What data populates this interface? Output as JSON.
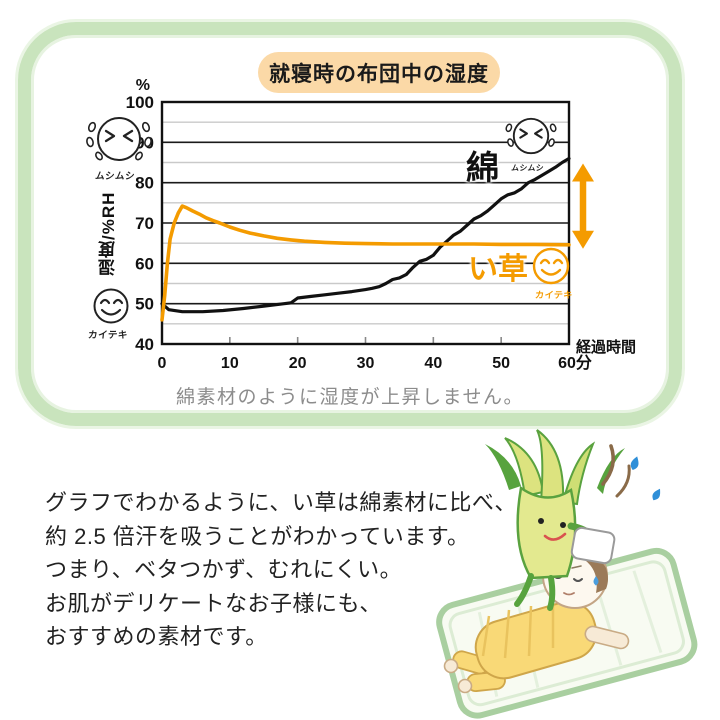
{
  "header": {
    "title": "就寝時の布団中の湿度",
    "pill_bg": "#fbd9a7"
  },
  "chart_data": {
    "type": "line",
    "title": "就寝時の布団中の湿度",
    "ylabel": "湿度/%RH",
    "y_unit_label": "%",
    "xlabel": "経過時間",
    "xlim": [
      0,
      60
    ],
    "ylim": [
      40,
      100
    ],
    "y_ticks": [
      100,
      90,
      80,
      70,
      60,
      50,
      40
    ],
    "minor_y_gridlines": [
      45,
      55,
      65,
      75,
      85,
      95
    ],
    "x_ticks": [
      0,
      10,
      20,
      30,
      40,
      50,
      60
    ],
    "x_tick_labels": [
      "0",
      "10",
      "20",
      "30",
      "40",
      "50",
      "60分"
    ],
    "grid": "horizontal major (black) + minor (light gray)",
    "legend_position": "inline labels on plot",
    "series": [
      {
        "name": "綿",
        "color": "#111111",
        "mood_label": "ムシムシ",
        "points": [
          [
            0,
            50
          ],
          [
            1,
            48.5
          ],
          [
            3,
            48
          ],
          [
            6,
            48
          ],
          [
            9,
            48.3
          ],
          [
            12,
            48.8
          ],
          [
            15,
            49.4
          ],
          [
            18,
            50
          ],
          [
            19,
            50.2
          ],
          [
            20,
            51.4
          ],
          [
            22,
            51.8
          ],
          [
            24,
            52.2
          ],
          [
            26,
            52.6
          ],
          [
            28,
            53
          ],
          [
            30,
            53.5
          ],
          [
            31,
            53.8
          ],
          [
            32,
            54.2
          ],
          [
            33,
            55
          ],
          [
            34,
            56
          ],
          [
            35,
            56.4
          ],
          [
            36,
            57.2
          ],
          [
            37,
            59
          ],
          [
            38,
            60.5
          ],
          [
            39,
            61
          ],
          [
            40,
            62
          ],
          [
            41,
            64
          ],
          [
            42,
            65.5
          ],
          [
            43,
            67
          ],
          [
            44,
            68
          ],
          [
            45,
            69.5
          ],
          [
            46,
            71
          ],
          [
            47,
            71.8
          ],
          [
            48,
            73
          ],
          [
            49,
            74.5
          ],
          [
            50,
            76
          ],
          [
            51,
            77
          ],
          [
            52,
            77.5
          ],
          [
            53,
            78.5
          ],
          [
            54,
            80
          ],
          [
            55,
            80.8
          ],
          [
            56,
            81.8
          ],
          [
            57,
            82.8
          ],
          [
            58,
            83.8
          ],
          [
            59,
            85
          ],
          [
            60,
            86
          ]
        ]
      },
      {
        "name": "い草",
        "color": "#f49b00",
        "mood_label": "カイテキ",
        "points": [
          [
            0,
            46
          ],
          [
            0.4,
            52
          ],
          [
            0.8,
            60
          ],
          [
            1.2,
            66
          ],
          [
            1.8,
            70
          ],
          [
            2.4,
            72.5
          ],
          [
            3,
            74.2
          ],
          [
            3.6,
            73.8
          ],
          [
            4.5,
            73
          ],
          [
            5.5,
            72.2
          ],
          [
            6.5,
            71.3
          ],
          [
            7.5,
            70.6
          ],
          [
            8.5,
            70
          ],
          [
            10,
            69
          ],
          [
            11.5,
            68.2
          ],
          [
            13,
            67.5
          ],
          [
            15,
            66.8
          ],
          [
            17,
            66.2
          ],
          [
            19,
            65.8
          ],
          [
            21,
            65.5
          ],
          [
            24,
            65.2
          ],
          [
            27,
            65
          ],
          [
            30,
            64.9
          ],
          [
            34,
            64.8
          ],
          [
            38,
            64.8
          ],
          [
            42,
            64.8
          ],
          [
            46,
            64.8
          ],
          [
            50,
            64.7
          ],
          [
            55,
            64.7
          ],
          [
            60,
            64.6
          ]
        ]
      }
    ],
    "annotations": {
      "gap_arrow": "orange double-headed vertical arrow between line endpoints at right edge",
      "left_top_icon_label": "ムシムシ",
      "left_bottom_icon_label": "カイテキ"
    }
  },
  "icons": {
    "mushi_label": "ムシムシ",
    "kaiteki_label": "カイテキ"
  },
  "caption": "綿素材のように湿度が上昇しません。",
  "body": {
    "lines": [
      "グラフでわかるように、い草は綿素材に比べ、",
      "約 2.5 倍汗を吸うことがわかっています。",
      "つまり、ベタつかず、むれにくい。",
      "お肌がデリケートなお子様にも、",
      "おすすめの素材です。"
    ]
  },
  "colors": {
    "accent_orange": "#f49b00",
    "frame_green": "#c9e4bd",
    "minor_grid": "#c9c9c9",
    "caption_gray": "#8c8c8c"
  }
}
